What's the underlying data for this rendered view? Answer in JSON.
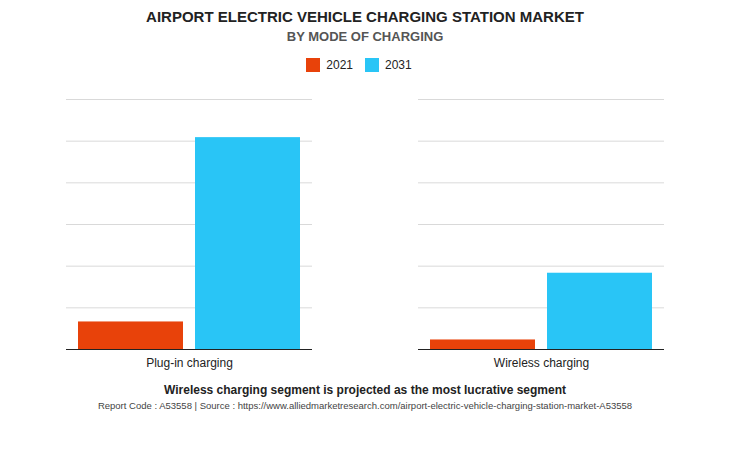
{
  "chart_data": {
    "type": "bar",
    "title": "AIRPORT ELECTRIC VEHICLE CHARGING STATION MARKET",
    "subtitle": "BY MODE OF CHARGING",
    "categories": [
      "Plug-in charging",
      "Wireless charging"
    ],
    "series": [
      {
        "name": "2021",
        "color": "#E8420A",
        "values": [
          0.13,
          0.045
        ]
      },
      {
        "name": "2031",
        "color": "#29C5F6",
        "values": [
          1.0,
          0.36
        ]
      }
    ],
    "ylim": [
      0,
      1.18
    ],
    "yticks": [
      0,
      0.19666666666666666,
      0.3933333333333333,
      0.59,
      0.7866666666666666,
      0.9833333333333333,
      1.18
    ],
    "grid": true,
    "tick_labels": "x",
    "legend": "top",
    "annotations": [
      "Wireless charging segment is projected as the most lucrative segment",
      "Report Code : A53558  |  Source : https://www.alliedmarketresearch.com/airport-electric-vehicle-charging-station-market-A53558"
    ]
  }
}
